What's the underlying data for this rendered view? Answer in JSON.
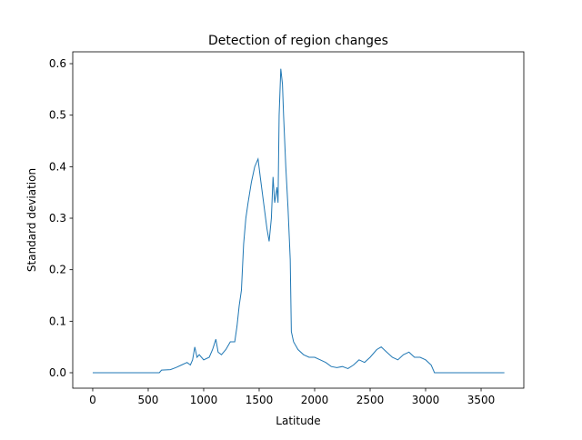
{
  "chart_data": {
    "type": "line",
    "title": "Detection of region changes",
    "x_label": "Latitude",
    "y_label": "Standard deviation",
    "x": [
      0,
      600,
      620,
      700,
      750,
      800,
      850,
      880,
      900,
      920,
      940,
      960,
      1000,
      1050,
      1080,
      1110,
      1130,
      1160,
      1200,
      1240,
      1280,
      1300,
      1320,
      1340,
      1360,
      1380,
      1400,
      1430,
      1460,
      1490,
      1510,
      1540,
      1570,
      1590,
      1610,
      1625,
      1640,
      1660,
      1670,
      1680,
      1695,
      1710,
      1720,
      1740,
      1760,
      1780,
      1790,
      1810,
      1850,
      1900,
      1950,
      2000,
      2050,
      2100,
      2150,
      2200,
      2250,
      2300,
      2350,
      2400,
      2450,
      2500,
      2560,
      2600,
      2650,
      2700,
      2750,
      2800,
      2850,
      2900,
      2950,
      3000,
      3050,
      3080,
      3710
    ],
    "series": [
      {
        "color": "#1f77b4",
        "values": [
          0,
          0,
          0.005,
          0.006,
          0.01,
          0.015,
          0.02,
          0.015,
          0.025,
          0.05,
          0.03,
          0.035,
          0.025,
          0.03,
          0.045,
          0.065,
          0.04,
          0.035,
          0.045,
          0.06,
          0.06,
          0.09,
          0.13,
          0.16,
          0.25,
          0.3,
          0.33,
          0.37,
          0.4,
          0.415,
          0.38,
          0.33,
          0.28,
          0.255,
          0.3,
          0.38,
          0.33,
          0.36,
          0.33,
          0.5,
          0.59,
          0.56,
          0.5,
          0.4,
          0.32,
          0.22,
          0.08,
          0.06,
          0.045,
          0.035,
          0.03,
          0.03,
          0.025,
          0.02,
          0.012,
          0.01,
          0.012,
          0.008,
          0.015,
          0.025,
          0.02,
          0.03,
          0.045,
          0.05,
          0.04,
          0.03,
          0.025,
          0.035,
          0.04,
          0.03,
          0.03,
          0.025,
          0.015,
          0,
          0
        ]
      }
    ],
    "xlim": [
      -180,
      3885
    ],
    "ylim": [
      -0.03,
      0.623
    ],
    "xticks": [
      0,
      500,
      1000,
      1500,
      2000,
      2500,
      3000,
      3500
    ],
    "yticks": [
      {
        "value": 0,
        "label": "0.0"
      },
      0.1,
      0.2,
      0.3,
      0.4,
      0.5,
      0.6
    ]
  }
}
